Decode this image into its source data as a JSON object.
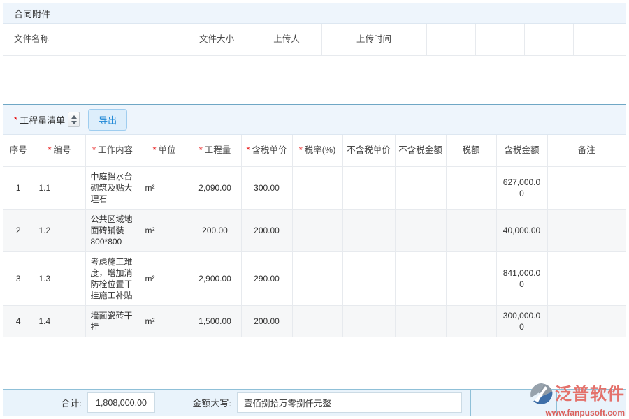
{
  "attachments": {
    "title": "合同附件",
    "columns": [
      "文件名称",
      "文件大小",
      "上传人",
      "上传时间",
      "",
      "",
      "",
      ""
    ]
  },
  "boq": {
    "required_mark": "*",
    "title": "工程量清单",
    "export_label": "导出",
    "columns": [
      {
        "label": "序号",
        "required": false
      },
      {
        "label": "编号",
        "required": true
      },
      {
        "label": "工作内容",
        "required": true
      },
      {
        "label": "单位",
        "required": true
      },
      {
        "label": "工程量",
        "required": true
      },
      {
        "label": "含税单价",
        "required": true
      },
      {
        "label": "税率(%)",
        "required": true
      },
      {
        "label": "不含税单价",
        "required": false
      },
      {
        "label": "不含税金额",
        "required": false
      },
      {
        "label": "税额",
        "required": false
      },
      {
        "label": "含税金额",
        "required": false
      },
      {
        "label": "备注",
        "required": false
      }
    ],
    "rows": [
      [
        "1",
        "1.1",
        "中庭挡水台砌筑及贴大理石",
        "m²",
        "2,090.00",
        "300.00",
        "",
        "",
        "",
        "",
        "627,000.00",
        ""
      ],
      [
        "2",
        "1.2",
        "公共区域地面砖铺装800*800",
        "m²",
        "200.00",
        "200.00",
        "",
        "",
        "",
        "",
        "40,000.00",
        ""
      ],
      [
        "3",
        "1.3",
        "考虑施工难度，增加消防栓位置干挂施工补贴",
        "m²",
        "2,900.00",
        "290.00",
        "",
        "",
        "",
        "",
        "841,000.00",
        ""
      ],
      [
        "4",
        "1.4",
        "墙面瓷砖干挂",
        "m²",
        "1,500.00",
        "200.00",
        "",
        "",
        "",
        "",
        "300,000.00",
        ""
      ]
    ],
    "footer": {
      "total_label": "合计:",
      "total_value": "1,808,000.00",
      "amount_words_label": "金额大写:",
      "amount_words_value": "壹佰捌拾万零捌仟元整"
    }
  },
  "watermark": {
    "brand": "泛普软件",
    "url": "www.fanpusoft.com"
  },
  "colors": {
    "panel_border": "#6fa7c5",
    "section_bg": "#eef5fc",
    "footer_bg": "#e9f3fb",
    "required": "#e60000",
    "export_text": "#1c87d6",
    "watermark_red": "#e4716b"
  }
}
